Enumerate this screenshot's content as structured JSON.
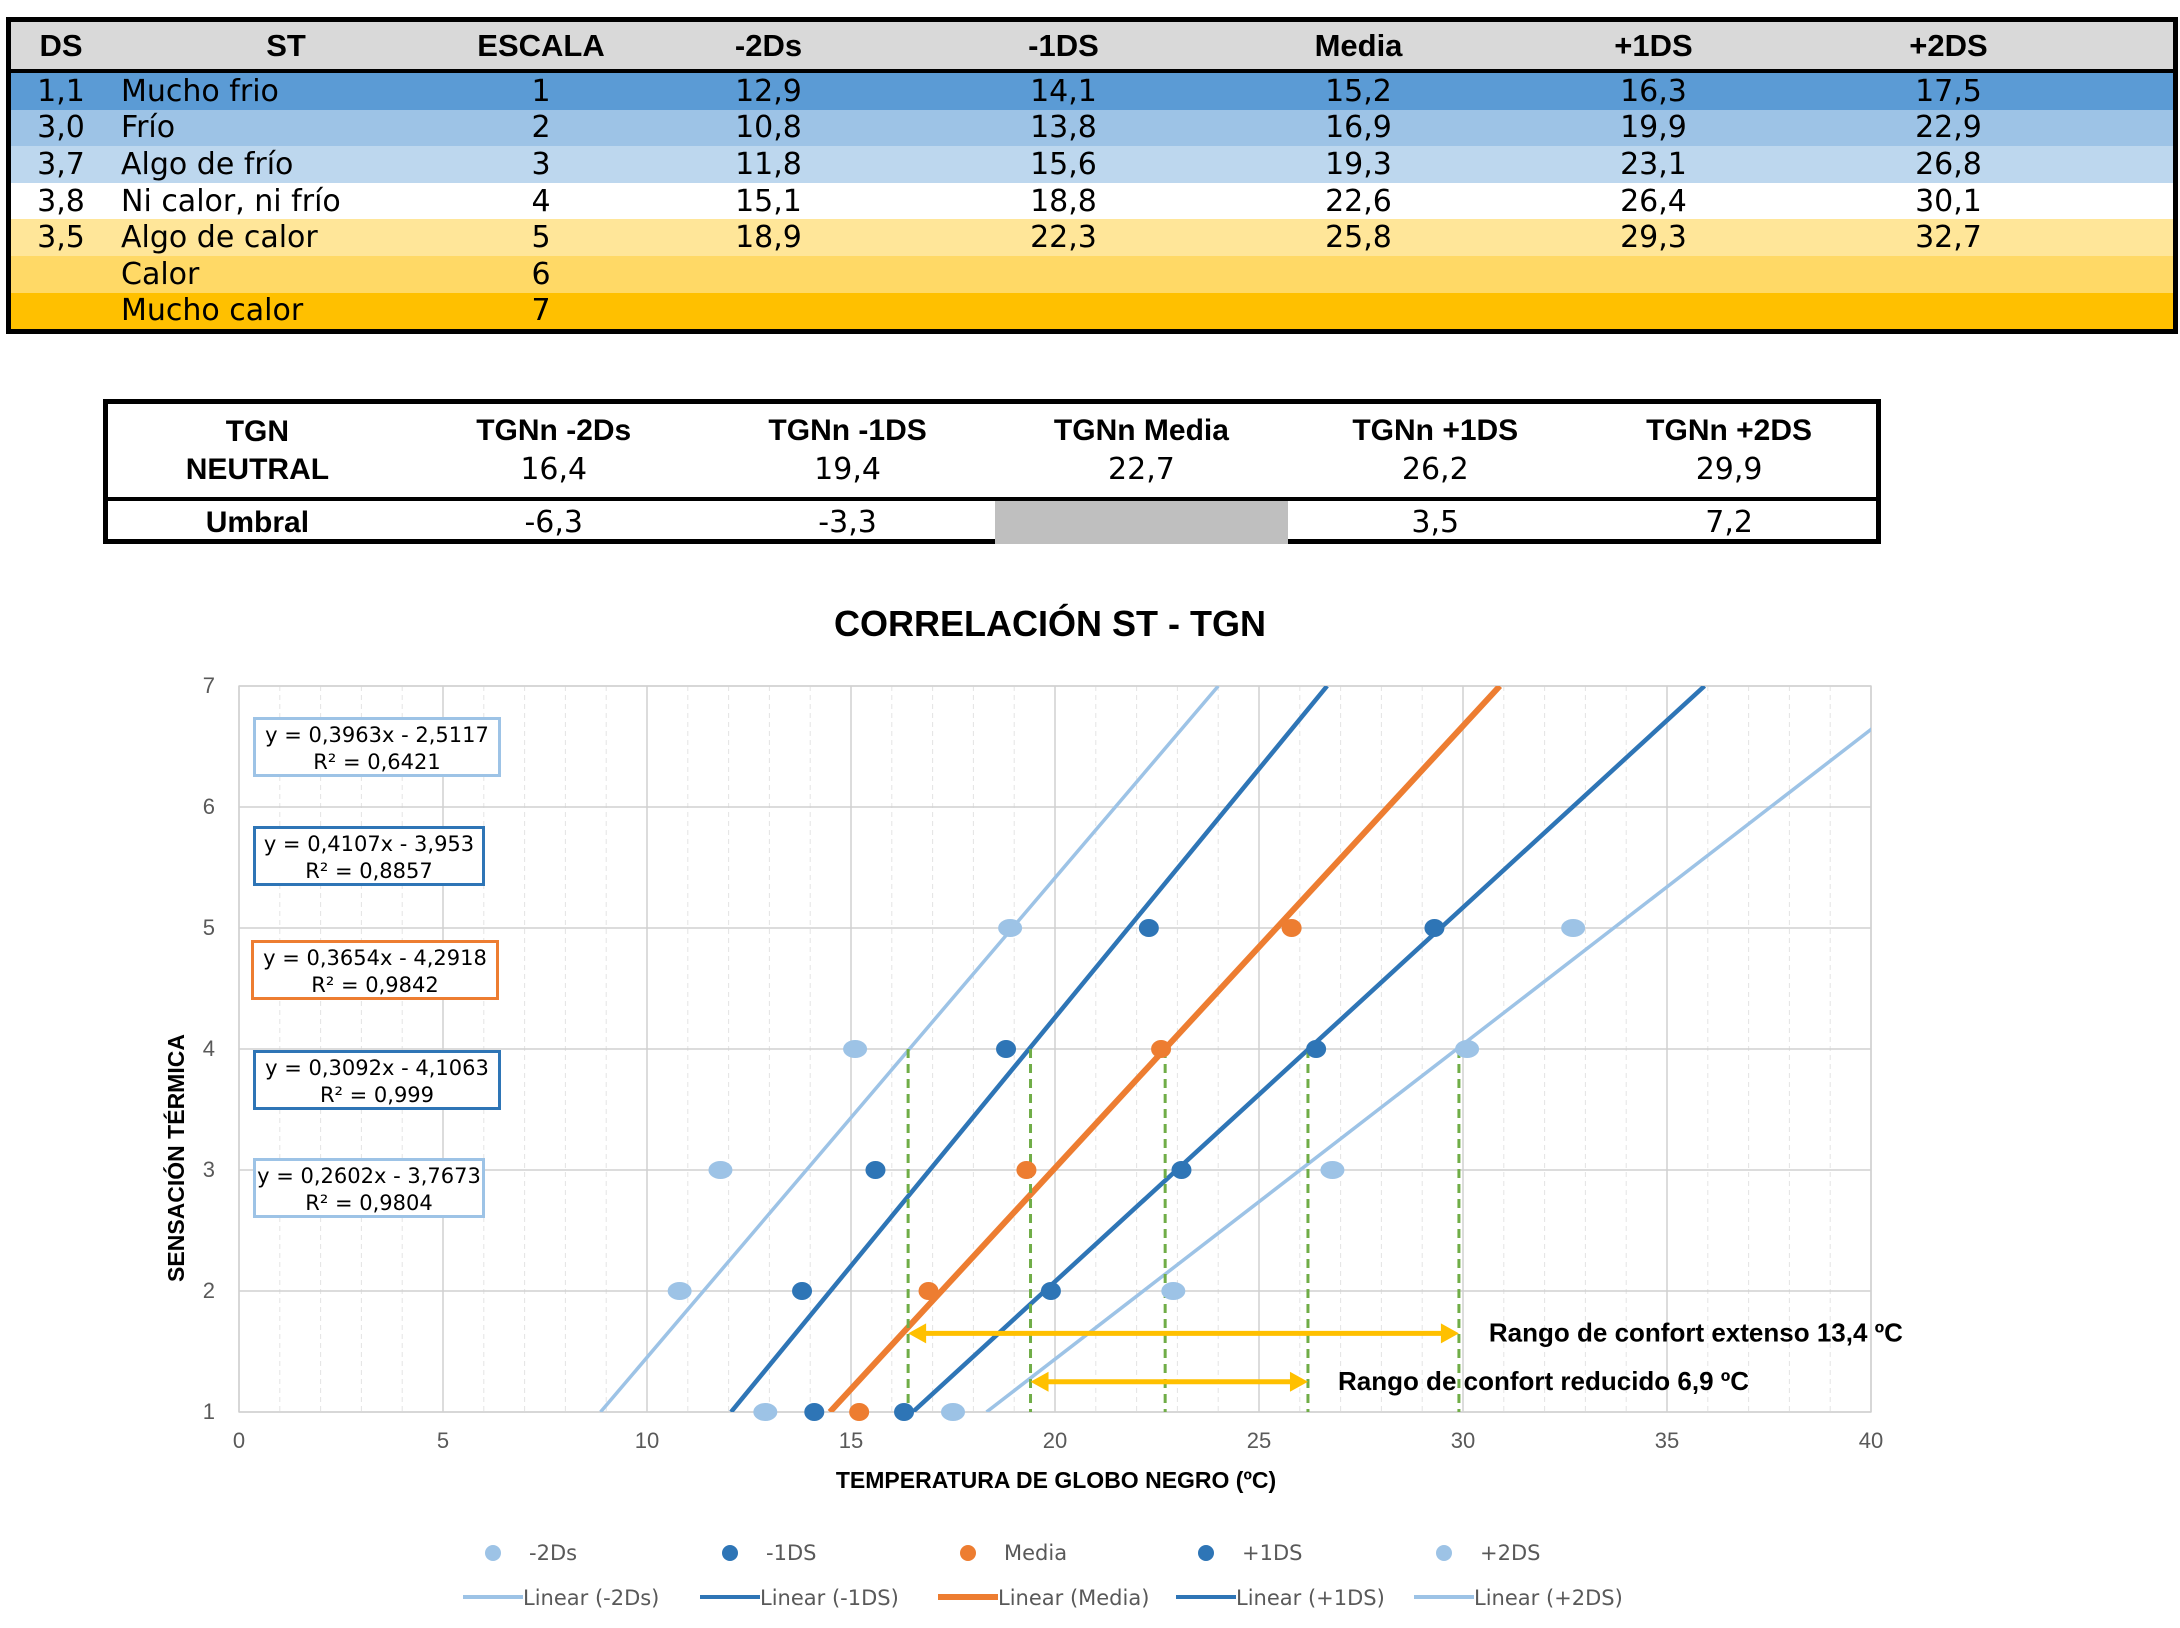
{
  "table1": {
    "headers": [
      "DS",
      "ST",
      "ESCALA",
      "-2Ds",
      "-1DS",
      "Media",
      "+1DS",
      "+2DS"
    ],
    "rows": [
      {
        "ds": "1,1",
        "st": "Mucho frio",
        "escala": "1",
        "v": [
          "12,9",
          "14,1",
          "15,2",
          "16,3",
          "17,5"
        ],
        "bg": "#5b9bd5"
      },
      {
        "ds": "3,0",
        "st": "Frío",
        "escala": "2",
        "v": [
          "10,8",
          "13,8",
          "16,9",
          "19,9",
          "22,9"
        ],
        "bg": "#9dc3e6"
      },
      {
        "ds": "3,7",
        "st": "Algo de frío",
        "escala": "3",
        "v": [
          "11,8",
          "15,6",
          "19,3",
          "23,1",
          "26,8"
        ],
        "bg": "#bdd7ee"
      },
      {
        "ds": "3,8",
        "st": "Ni calor, ni frío",
        "escala": "4",
        "v": [
          "15,1",
          "18,8",
          "22,6",
          "26,4",
          "30,1"
        ],
        "bg": "#ffffff"
      },
      {
        "ds": "3,5",
        "st": "Algo de calor",
        "escala": "5",
        "v": [
          "18,9",
          "22,3",
          "25,8",
          "29,3",
          "32,7"
        ],
        "bg": "#ffe699"
      },
      {
        "ds": "",
        "st": "Calor",
        "escala": "6",
        "v": [
          "",
          "",
          "",
          "",
          ""
        ],
        "bg": "#ffd966"
      },
      {
        "ds": "",
        "st": "Mucho calor",
        "escala": "7",
        "v": [
          "",
          "",
          "",
          "",
          ""
        ],
        "bg": "#ffc000"
      }
    ]
  },
  "table2": {
    "first_header_line1": "TGN",
    "first_header_line2": "NEUTRAL",
    "headers": [
      "TGNn -2Ds",
      "TGNn -1DS",
      "TGNn Media",
      "TGNn +1DS",
      "TGNn +2DS"
    ],
    "values": [
      "16,4",
      "19,4",
      "22,7",
      "26,2",
      "29,9"
    ],
    "umbral_label": "Umbral",
    "umbral": [
      "-6,3",
      "-3,3",
      "",
      "3,5",
      "7,2"
    ],
    "umbral_gray_index": 2
  },
  "chart_data": {
    "type": "scatter",
    "title": "CORRELACIÓN ST - TGN",
    "xlabel": "TEMPERATURA DE GLOBO NEGRO (ºC)",
    "ylabel": "SENSACIÓN TÉRMICA",
    "xlim": [
      0,
      40
    ],
    "ylim": [
      1,
      7
    ],
    "xticks": [
      0,
      5,
      10,
      15,
      20,
      25,
      30,
      35,
      40
    ],
    "yticks": [
      1,
      2,
      3,
      4,
      5,
      6,
      7
    ],
    "grid": true,
    "series": [
      {
        "name": "-2Ds",
        "color": "#9dc3e6",
        "trend_name": "Linear (-2Ds)",
        "x": [
          12.9,
          10.8,
          11.8,
          15.1,
          18.9
        ],
        "y": [
          1,
          2,
          3,
          4,
          5
        ],
        "slope": 0.3963,
        "intercept": -2.5117,
        "equation": "y = 0,3963x - 2,5117",
        "r2": "R² = 0,6421"
      },
      {
        "name": "-1DS",
        "color": "#2e75b6",
        "trend_name": "Linear (-1DS)",
        "x": [
          14.1,
          13.8,
          15.6,
          18.8,
          22.3
        ],
        "y": [
          1,
          2,
          3,
          4,
          5
        ],
        "slope": 0.4107,
        "intercept": -3.953,
        "equation": "y = 0,4107x - 3,953",
        "r2": "R² = 0,8857"
      },
      {
        "name": "Media",
        "color": "#ed7d31",
        "trend_name": "Linear (Media)",
        "x": [
          15.2,
          16.9,
          19.3,
          22.6,
          25.8
        ],
        "y": [
          1,
          2,
          3,
          4,
          5
        ],
        "slope": 0.3654,
        "intercept": -4.2918,
        "equation": "y = 0,3654x - 4,2918",
        "r2": "R² = 0,9842"
      },
      {
        "name": "+1DS",
        "color": "#2e75b6",
        "trend_name": "Linear (+1DS)",
        "x": [
          16.3,
          19.9,
          23.1,
          26.4,
          29.3
        ],
        "y": [
          1,
          2,
          3,
          4,
          5
        ],
        "slope": 0.3092,
        "intercept": -4.1063,
        "equation": "y = 0,3092x - 4,1063",
        "r2": "R² = 0,999"
      },
      {
        "name": "+2DS",
        "color": "#9dc3e6",
        "trend_name": "Linear (+2DS)",
        "x": [
          17.5,
          22.9,
          26.8,
          30.1,
          32.7
        ],
        "y": [
          1,
          2,
          3,
          4,
          5
        ],
        "slope": 0.2602,
        "intercept": -3.7673,
        "equation": "y = 0,2602x - 3,7673",
        "r2": "R² = 0,9804"
      }
    ],
    "vertical_guides": [
      {
        "x": 16.4,
        "y_top": 4
      },
      {
        "x": 19.4,
        "y_top": 4
      },
      {
        "x": 22.7,
        "y_top": 4
      },
      {
        "x": 26.2,
        "y_top": 4
      },
      {
        "x": 29.9,
        "y_top": 4
      }
    ],
    "guide_color": "#70ad47",
    "arrow_color": "#ffc000",
    "arrows": [
      {
        "x1": 16.4,
        "x2": 29.9,
        "y": 1.65,
        "label": "Rango de confort extenso 13,4 ºC"
      },
      {
        "x1": 19.4,
        "x2": 26.2,
        "y": 1.25,
        "label": "Rango de confort reducido 6,9 ºC"
      }
    ],
    "legend_position": "bottom"
  }
}
